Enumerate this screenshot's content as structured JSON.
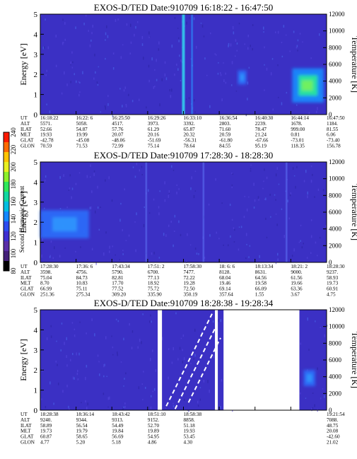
{
  "page": {
    "background": "#ffffff"
  },
  "colorbar": {
    "label": "Second Harmonic Current",
    "ticks": [
      "80",
      "100",
      "120",
      "140",
      "160",
      "180",
      "200",
      "220",
      "240"
    ],
    "colors": [
      "#000000",
      "#44207a",
      "#5a2ea8",
      "#3f2fd2",
      "#2b4cf0",
      "#1288ff",
      "#00bfe0",
      "#10d8a0",
      "#2ee85a",
      "#8cf02a",
      "#e8f020",
      "#ffc400",
      "#ff6a00",
      "#ff1a00"
    ]
  },
  "chart_data": [
    {
      "type": "heatmap",
      "title": "EXOS-D/TED   Date:910709   16:18:22 - 16:47:50",
      "ylabel": "Energy [eV]",
      "y2label": "Temperature [K]",
      "ylim": [
        0,
        5
      ],
      "y2lim": [
        0,
        12000
      ],
      "yticks": [
        "0",
        "1",
        "2",
        "3",
        "4",
        "5"
      ],
      "y2ticks": [
        "0",
        "2000",
        "4000",
        "6000",
        "8000",
        "10000",
        "12000"
      ],
      "background_color": "#3b30c4",
      "features": [
        {
          "kind": "vertical-streak",
          "x_frac": 0.5,
          "intensity": "high"
        },
        {
          "kind": "vertical-streak",
          "x_frac": 0.53,
          "intensity": "medium"
        },
        {
          "kind": "blob",
          "x_range": [
            0.88,
            0.99
          ],
          "energy_range": [
            0.6,
            2.3
          ],
          "intensity": "high"
        },
        {
          "kind": "blob",
          "x_range": [
            0.69,
            0.72
          ],
          "energy_range": [
            1.5,
            2.2
          ],
          "intensity": "medium"
        }
      ],
      "ephemeris": {
        "labels": [
          "UT",
          "ALT",
          "ILAT",
          "MLT",
          "GLAT",
          "GLON"
        ],
        "columns": [
          [
            "16:18:22",
            "5571.",
            "52.66",
            "19.93",
            "-42.78",
            "70.59"
          ],
          [
            "16:22: 6",
            "5058.",
            "54.87",
            "19.99",
            "-45.08",
            "71.53"
          ],
          [
            "16:25:50",
            "4517.",
            "57.76",
            "20.07",
            "-48.06",
            "72.99"
          ],
          [
            "16:29:26",
            "3973.",
            "61.29",
            "20.16",
            "-51.69",
            "75.14"
          ],
          [
            "16:33:10",
            "3392.",
            "65.87",
            "20.32",
            "-56.31",
            "78.64"
          ],
          [
            "16:36:54",
            "2803.",
            "71.60",
            "20.59",
            "-61.80",
            "84.55"
          ],
          [
            "16:40:30",
            "2239.",
            "78.47",
            "21.24",
            "-67.66",
            "95.19"
          ],
          [
            "16:44:14",
            "1678.",
            "999.00",
            "0.81",
            "-73.01",
            "118.35"
          ],
          [
            "16:47:50",
            "1184.",
            "81.55",
            "6.06",
            "-73.40",
            "156.78"
          ]
        ]
      }
    },
    {
      "type": "heatmap",
      "title": "EXOS-D/TED   Date:910709   17:28:30 - 18:28:30",
      "ylabel": "Energy [eV]",
      "y2label": "Temperature [K]",
      "ylim": [
        0,
        5
      ],
      "y2lim": [
        0,
        12000
      ],
      "yticks": [
        "0",
        "1",
        "2",
        "3",
        "4",
        "5"
      ],
      "y2ticks": [
        "0",
        "2000",
        "4000",
        "6000",
        "8000",
        "10000",
        "12000"
      ],
      "background_color": "#3b30c4",
      "features": [
        {
          "kind": "blob",
          "x_range": [
            0.0,
            0.17
          ],
          "energy_range": [
            1.2,
            2.6
          ],
          "intensity": "medium"
        },
        {
          "kind": "vertical-streak",
          "x_frac": 0.37,
          "intensity": "low"
        },
        {
          "kind": "vertical-streak",
          "x_frac": 0.57,
          "intensity": "low"
        },
        {
          "kind": "vertical-streak",
          "x_frac": 0.86,
          "intensity": "low"
        }
      ],
      "ephemeris": {
        "labels": [
          "UT",
          "ALT",
          "ILAT",
          "MLT",
          "GLAT",
          "GLON"
        ],
        "columns": [
          [
            "17:28:30",
            "3598.",
            "75.04",
            "8.70",
            "66.99",
            "251.36"
          ],
          [
            "17:36: 6",
            "4756.",
            "84.73",
            "10.83",
            "75.11",
            "275.34"
          ],
          [
            "17:43:34",
            "5790.",
            "82.81",
            "17.70",
            "77.52",
            "309.20"
          ],
          [
            "17:51: 2",
            "6700.",
            "77.13",
            "18.92",
            "75.72",
            "335.90"
          ],
          [
            "17:58:30",
            "7477.",
            "72.22",
            "19.28",
            "72.50",
            "350.19"
          ],
          [
            "18: 6: 6",
            "8128.",
            "68.04",
            "19.46",
            "69.14",
            "357.64"
          ],
          [
            "18:13:34",
            "8631.",
            "64.56",
            "19.58",
            "66.09",
            "1.55"
          ],
          [
            "18:21: 2",
            "9000.",
            "61.56",
            "19.66",
            "63.36",
            "3.67"
          ],
          [
            "18:28:30",
            "9237.",
            "58.93",
            "19.73",
            "60.91",
            "4.75"
          ]
        ]
      }
    },
    {
      "type": "heatmap",
      "title": "EXOS-D/TED   Date:910709   18:28:38 - 19:28:34",
      "ylabel": "Energy [eV]",
      "y2label": "Temperature [K]",
      "ylim": [
        0,
        5
      ],
      "y2lim": [
        0,
        12000
      ],
      "yticks": [
        "0",
        "1",
        "2",
        "3",
        "4",
        "5"
      ],
      "y2ticks": [
        "0",
        "2000",
        "4000",
        "6000",
        "8000",
        "10000",
        "12000"
      ],
      "background_color": "#3b30c4",
      "features": [
        {
          "kind": "data-gap",
          "x_range": [
            0.41,
            0.425
          ]
        },
        {
          "kind": "data-gap",
          "x_range": [
            0.61,
            0.62
          ]
        },
        {
          "kind": "data-gap",
          "x_range": [
            0.64,
            0.905
          ]
        },
        {
          "kind": "diagonal-trace",
          "x_range": [
            0.44,
            0.6
          ],
          "intensity": "white"
        },
        {
          "kind": "blob",
          "x_range": [
            0.92,
            0.96
          ],
          "energy_range": [
            1.2,
            2.0
          ],
          "intensity": "medium"
        }
      ],
      "ephemeris": {
        "labels": [
          "UT",
          "ALT",
          "ILAT",
          "MLT",
          "GLAT",
          "GLON"
        ],
        "columns": [
          [
            "18:28:38",
            "9240.",
            "58.89",
            "19.73",
            "60.87",
            "4.77"
          ],
          [
            "18:36:14",
            "9344.",
            "56.54",
            "19.79",
            "58.65",
            "5.20"
          ],
          [
            "18:43:42",
            "9313.",
            "54.49",
            "19.84",
            "56.69",
            "5.18"
          ],
          [
            "18:51:10",
            "9152.",
            "52.70",
            "19.89",
            "54.95",
            "4.86"
          ],
          [
            "18:58:38",
            "8858.",
            "51.18",
            "19.93",
            "53.45",
            "4.30"
          ],
          [
            "",
            "",
            "",
            "",
            "",
            ""
          ],
          [
            "",
            "",
            "",
            "",
            "",
            ""
          ],
          [
            "",
            "",
            "",
            "",
            "",
            ""
          ],
          [
            "19:21:54",
            "7088.",
            "48.75",
            "20.08",
            "-42.60",
            "21.02"
          ]
        ]
      }
    }
  ]
}
